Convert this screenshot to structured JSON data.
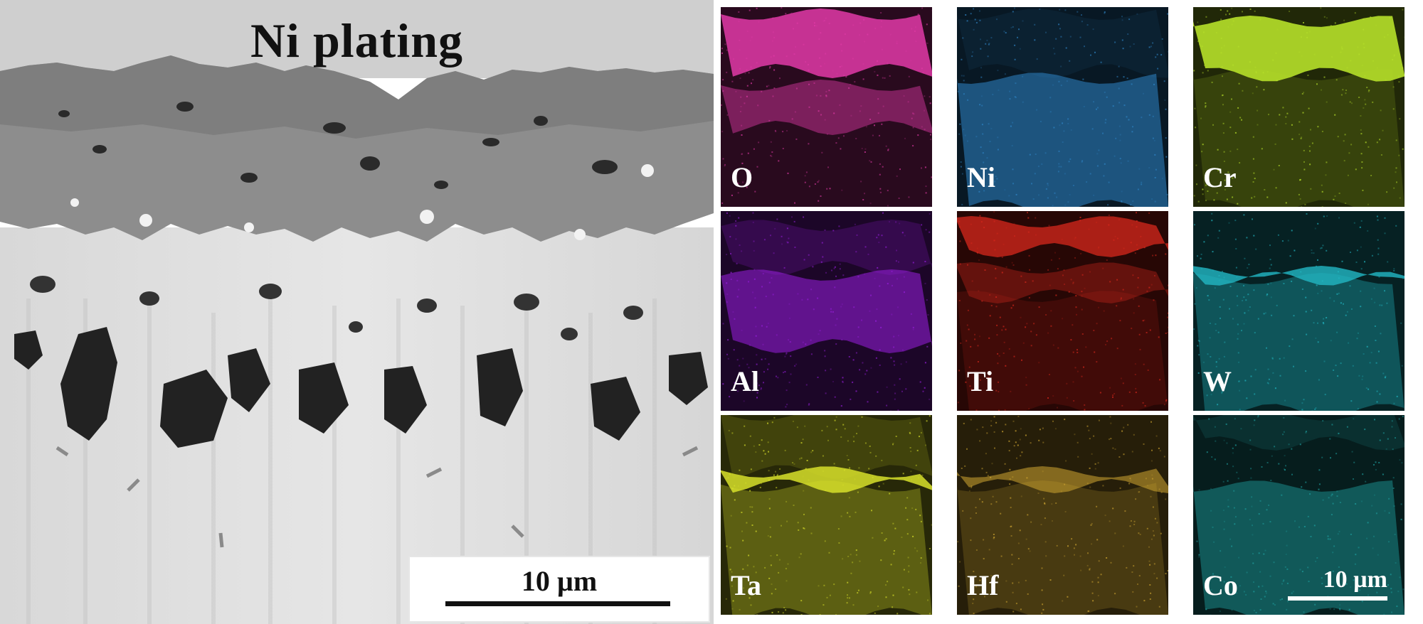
{
  "sem": {
    "title": "Ni plating",
    "scale_label": "10 µm"
  },
  "maps": [
    {
      "element": "O",
      "color": "#e23aa8"
    },
    {
      "element": "Ni",
      "color": "#2f86c8"
    },
    {
      "element": "Cr",
      "color": "#b6e02a"
    },
    {
      "element": "Al",
      "color": "#9a1fe0"
    },
    {
      "element": "Ti",
      "color": "#d8281c"
    },
    {
      "element": "W",
      "color": "#22b8c4"
    },
    {
      "element": "Ta",
      "color": "#d8e02a"
    },
    {
      "element": "Hf",
      "color": "#d2a832"
    },
    {
      "element": "Co",
      "color": "#1fa3a3"
    }
  ],
  "maps_scale_label": "10 µm"
}
